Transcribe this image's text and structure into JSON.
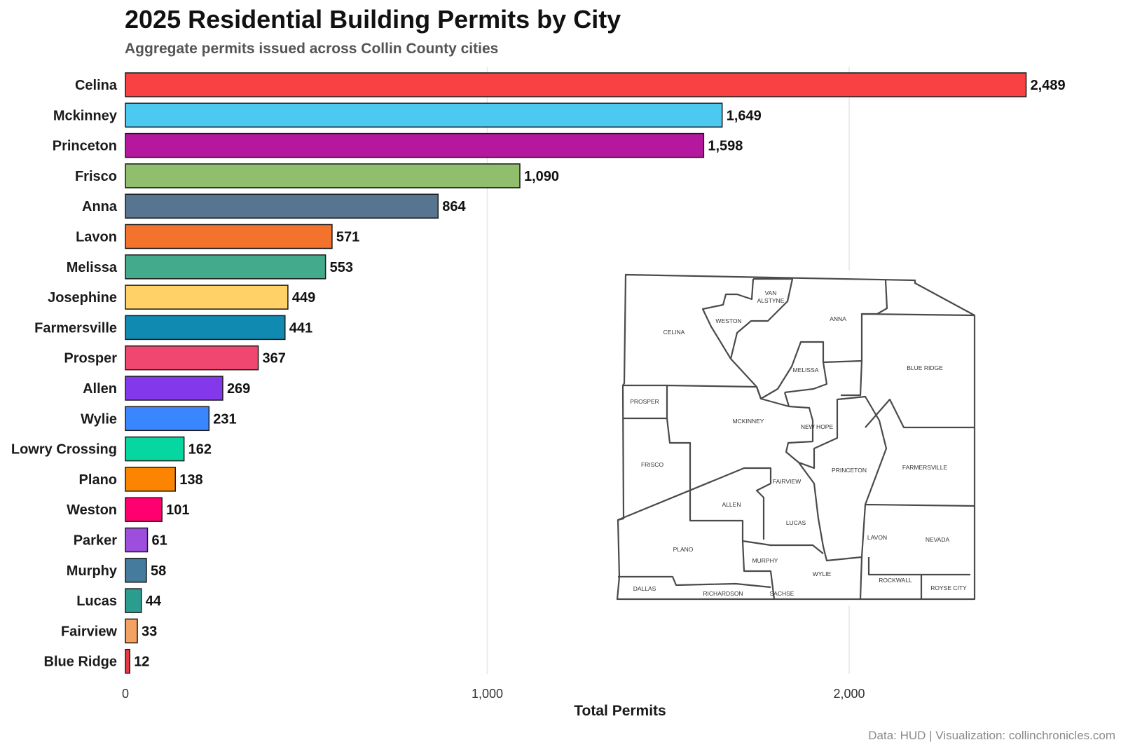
{
  "chart_data": {
    "type": "bar",
    "orientation": "horizontal",
    "title": "2025 Residential Building Permits by City",
    "subtitle": "Aggregate permits issued across Collin County cities",
    "xlabel": "Total Permits",
    "ylabel": "",
    "xlim": [
      0,
      2700
    ],
    "x_ticks": [
      0,
      1000,
      2000
    ],
    "x_tick_labels": [
      "0",
      "1,000",
      "2,000"
    ],
    "grid": "vertical major gridlines",
    "legend": "none",
    "caption": "Data: HUD | Visualization: collinchronicles.com",
    "categories": [
      "Celina",
      "Mckinney",
      "Princeton",
      "Frisco",
      "Anna",
      "Lavon",
      "Melissa",
      "Josephine",
      "Farmersville",
      "Prosper",
      "Allen",
      "Wylie",
      "Lowry Crossing",
      "Plano",
      "Weston",
      "Parker",
      "Murphy",
      "Lucas",
      "Fairview",
      "Blue Ridge"
    ],
    "values": [
      2489,
      1649,
      1598,
      1090,
      864,
      571,
      553,
      449,
      441,
      367,
      269,
      231,
      162,
      138,
      101,
      61,
      58,
      44,
      33,
      12
    ],
    "value_labels": [
      "2,489",
      "1,649",
      "1,598",
      "1,090",
      "864",
      "571",
      "553",
      "449",
      "441",
      "367",
      "269",
      "231",
      "162",
      "138",
      "101",
      "61",
      "58",
      "44",
      "33",
      "12"
    ],
    "colors": [
      "#F94144",
      "#4CC9F0",
      "#B5179E",
      "#90BE6D",
      "#577590",
      "#F3722C",
      "#43AA8B",
      "#FFD166",
      "#118AB2",
      "#EF476F",
      "#8338EC",
      "#3A86FF",
      "#06D6A0",
      "#FB8500",
      "#FF006E",
      "#9D4EDD",
      "#457B9D",
      "#2A9D8F",
      "#F4A261",
      "#E63946"
    ],
    "bar_outline_color": "#1a1a1a"
  },
  "inset_map": {
    "labels": [
      "VAN",
      "ALSTYNE",
      "WESTON",
      "ANNA",
      "CELINA",
      "MELISSA",
      "BLUE RIDGE",
      "PROSPER",
      "MCKINNEY",
      "NEW HOPE",
      "FRISCO",
      "FAIRVIEW",
      "PRINCETON",
      "FARMERSVILLE",
      "ALLEN",
      "LUCAS",
      "LAVON",
      "NEVADA",
      "PLANO",
      "MURPHY",
      "WYLIE",
      "ROCKWALL",
      "ROYSE CITY",
      "DALLAS",
      "RICHARDSON",
      "SACHSE"
    ]
  }
}
